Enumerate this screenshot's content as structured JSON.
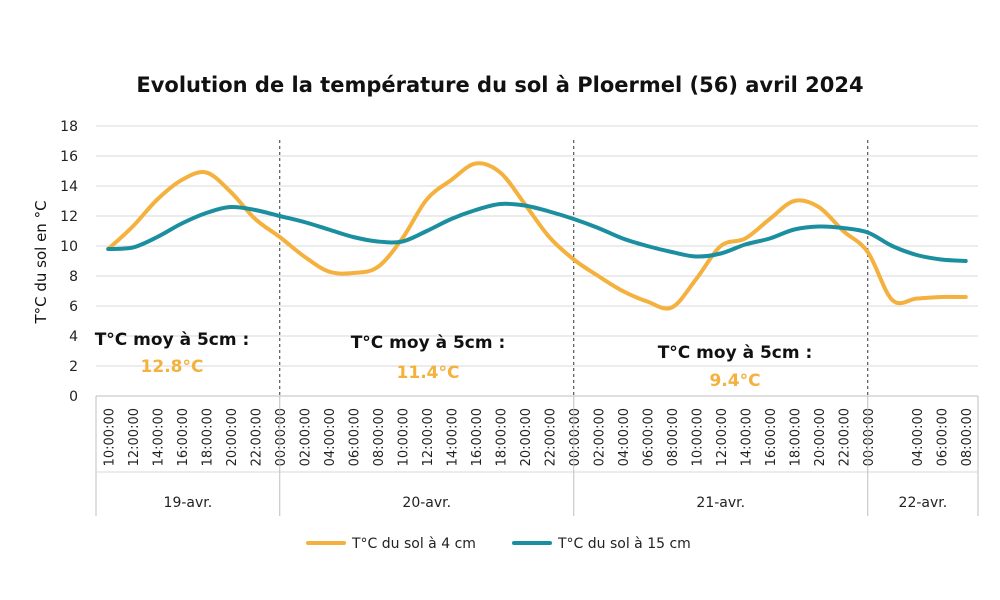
{
  "chart_data": {
    "type": "line",
    "title": "Evolution de la température du sol à Ploermel (56) avril 2024",
    "ylabel": "T°C du sol en °C",
    "xlabel": "",
    "ylim": [
      0,
      18
    ],
    "yticks": [
      0,
      2,
      4,
      6,
      8,
      10,
      12,
      14,
      16,
      18
    ],
    "grid": true,
    "legend_position": "bottom",
    "hours": [
      10,
      12,
      14,
      16,
      18,
      20,
      22,
      24,
      26,
      28,
      30,
      32,
      34,
      36,
      38,
      40,
      42,
      44,
      46,
      48,
      50,
      52,
      54,
      56,
      58,
      60,
      62,
      64,
      66,
      68,
      70,
      72,
      74,
      76,
      78,
      80
    ],
    "x_tick_labels": [
      "10:00:00",
      "12:00:00",
      "14:00:00",
      "16:00:00",
      "18:00:00",
      "20:00:00",
      "22:00:00",
      "00:00:00",
      "02:00:00",
      "04:00:00",
      "06:00:00",
      "08:00:00",
      "10:00:00",
      "12:00:00",
      "14:00:00",
      "16:00:00",
      "18:00:00",
      "20:00:00",
      "22:00:00",
      "00:00:00",
      "02:00:00",
      "04:00:00",
      "06:00:00",
      "08:00:00",
      "10:00:00",
      "12:00:00",
      "14:00:00",
      "16:00:00",
      "18:00:00",
      "20:00:00",
      "22:00:00",
      "00:00:00",
      "04:00:00",
      "06:00:00",
      "08:00:00"
    ],
    "x_tick_hours": [
      10,
      12,
      14,
      16,
      18,
      20,
      22,
      24,
      26,
      28,
      30,
      32,
      34,
      36,
      38,
      40,
      42,
      44,
      46,
      48,
      50,
      52,
      54,
      56,
      58,
      60,
      62,
      64,
      66,
      68,
      70,
      72,
      76,
      78,
      80
    ],
    "day_groups": [
      {
        "label": "19-avr.",
        "start_hour": 9,
        "end_hour": 24
      },
      {
        "label": "20-avr.",
        "start_hour": 24,
        "end_hour": 48
      },
      {
        "label": "21-avr.",
        "start_hour": 48,
        "end_hour": 72
      },
      {
        "label": "22-avr.",
        "start_hour": 72,
        "end_hour": 81
      }
    ],
    "x_range_hours": [
      9,
      81
    ],
    "series": [
      {
        "name": "T°C du sol à 4 cm",
        "color": "#F4B13E",
        "values": [
          9.8,
          11.3,
          13.1,
          14.4,
          14.9,
          13.6,
          11.8,
          10.6,
          9.3,
          8.3,
          8.2,
          8.6,
          10.5,
          13.1,
          14.4,
          15.5,
          14.9,
          12.8,
          10.6,
          9.1,
          8.0,
          7.0,
          6.3,
          5.9,
          7.8,
          10.0,
          10.5,
          11.8,
          13.0,
          12.6,
          11.0,
          9.6,
          6.4,
          6.5,
          6.6,
          6.6
        ]
      },
      {
        "name": "T°C du sol à 15 cm",
        "color": "#1B8FA0",
        "values": [
          9.8,
          9.9,
          10.6,
          11.5,
          12.2,
          12.6,
          12.4,
          12.0,
          11.6,
          11.1,
          10.6,
          10.3,
          10.3,
          11.0,
          11.8,
          12.4,
          12.8,
          12.7,
          12.3,
          11.8,
          11.2,
          10.5,
          10.0,
          9.6,
          9.3,
          9.5,
          10.1,
          10.5,
          11.1,
          11.3,
          11.2,
          10.9,
          10.0,
          9.4,
          9.1,
          9.0
        ]
      }
    ],
    "annotations": [
      {
        "label": "T°C moy à 5cm :",
        "value": "12.8°C"
      },
      {
        "label": "T°C moy à 5cm :",
        "value": "11.4°C"
      },
      {
        "label": "T°C moy à 5cm :",
        "value": "9.4°C"
      }
    ],
    "annotation_value_color": "#F4B13E"
  }
}
